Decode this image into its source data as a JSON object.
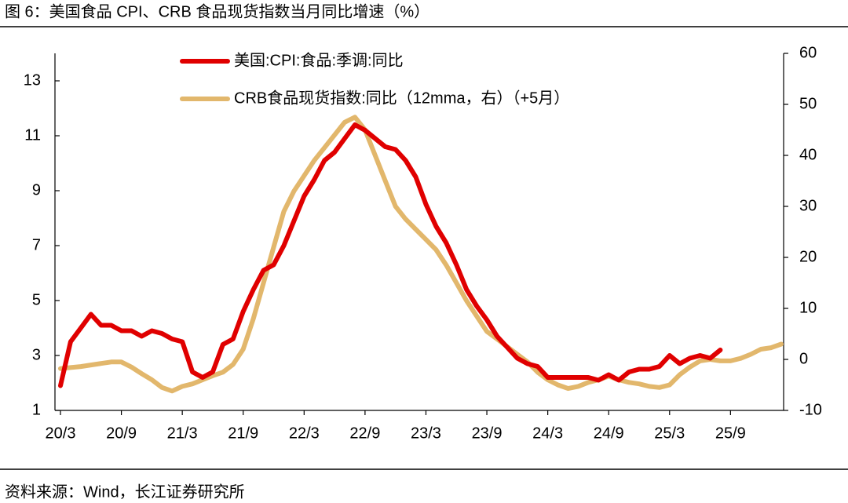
{
  "chart_data": {
    "type": "line",
    "title": "图 6：美国食品 CPI、CRB 食品现货指数当月同比增速（%）",
    "source": "资料来源：Wind，长江证券研究所",
    "categories": [
      "20/3",
      null,
      null,
      null,
      null,
      null,
      "20/9",
      null,
      null,
      null,
      null,
      null,
      "21/3",
      null,
      null,
      null,
      null,
      null,
      "21/9",
      null,
      null,
      null,
      null,
      null,
      "22/3",
      null,
      null,
      null,
      null,
      null,
      "22/9",
      null,
      null,
      null,
      null,
      null,
      "23/3",
      null,
      null,
      null,
      null,
      null,
      "23/9",
      null,
      null,
      null,
      null,
      null,
      "24/3",
      null,
      null,
      null,
      null,
      null,
      "24/9",
      null,
      null,
      null,
      null,
      null,
      "25/3",
      null,
      null,
      null,
      null,
      null,
      "25/9",
      null,
      null,
      null,
      null,
      null
    ],
    "series": [
      {
        "name": "美国:CPI:食品:季调:同比",
        "color": "#e00000",
        "axis": "y",
        "values": [
          1.9,
          3.5,
          4.0,
          4.5,
          4.1,
          4.1,
          3.9,
          3.9,
          3.7,
          3.9,
          3.8,
          3.6,
          3.5,
          2.4,
          2.2,
          2.4,
          3.4,
          3.6,
          4.6,
          5.4,
          6.1,
          6.3,
          7.0,
          7.9,
          8.8,
          9.4,
          10.1,
          10.4,
          10.9,
          11.4,
          11.2,
          10.9,
          10.6,
          10.5,
          10.1,
          9.5,
          8.5,
          7.7,
          7.1,
          6.3,
          5.4,
          4.8,
          4.3,
          3.7,
          3.3,
          2.9,
          2.7,
          2.6,
          2.2,
          2.2,
          2.2,
          2.2,
          2.2,
          2.1,
          2.3,
          2.1,
          2.4,
          2.5,
          2.5,
          2.6,
          3.0,
          2.7,
          2.9,
          3.0,
          2.9,
          3.2,
          null,
          null,
          null,
          null,
          null,
          null
        ]
      },
      {
        "name": "CRB食品现货指数:同比（12mma，右）（+5月）",
        "color": "#e2b76c",
        "axis": "y2",
        "values": [
          -1.8,
          -1.6,
          -1.4,
          -1.1,
          -0.8,
          -0.5,
          -0.5,
          -1.5,
          -2.8,
          -4,
          -5.5,
          -6.2,
          -5.3,
          -4.8,
          -4,
          -3.2,
          -2.5,
          -1,
          2,
          8,
          15,
          22,
          29,
          33,
          36,
          39,
          41.5,
          44,
          46.5,
          47.5,
          45,
          40,
          35,
          30,
          27.5,
          25.5,
          23.5,
          21.5,
          18.5,
          15,
          11.5,
          8.5,
          5.5,
          4,
          2.5,
          1,
          -0.5,
          -2.5,
          -4,
          -5,
          -5.7,
          -5.3,
          -4.5,
          -4,
          -3.3,
          -4,
          -4.5,
          -4.8,
          -5.3,
          -5.5,
          -5,
          -3,
          -1.5,
          -0.3,
          0,
          -0.3,
          -0.3,
          0.2,
          1,
          2,
          2.3,
          3.0
        ]
      }
    ],
    "ylim": [
      1,
      14
    ],
    "yticks": [
      1,
      3,
      5,
      7,
      9,
      11,
      13
    ],
    "y2lim": [
      -10,
      60
    ],
    "y2ticks": [
      -10,
      0,
      10,
      20,
      30,
      40,
      50,
      60
    ],
    "legend": "top-left",
    "grid": false
  }
}
